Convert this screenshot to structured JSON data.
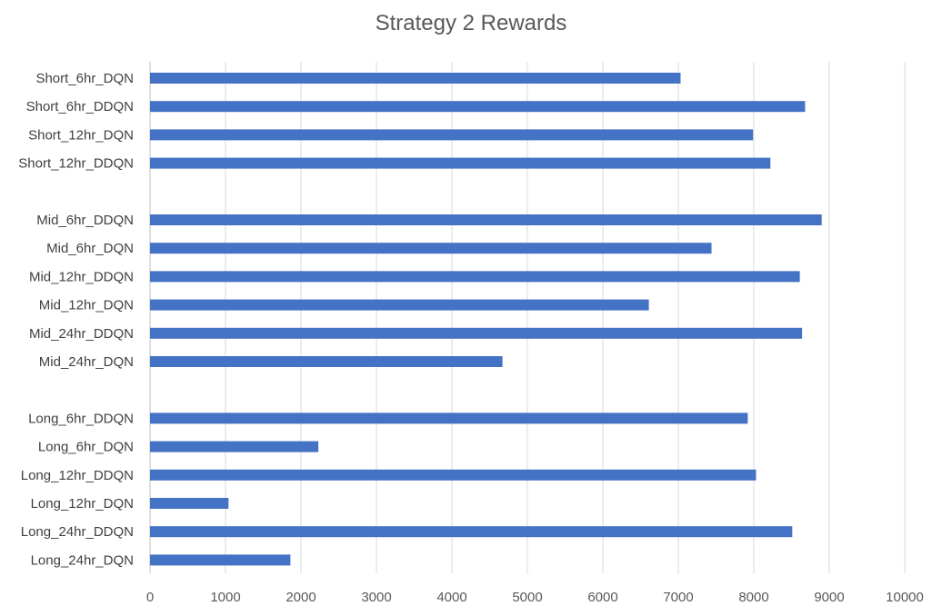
{
  "chart_data": {
    "type": "bar",
    "orientation": "horizontal",
    "title": "Strategy 2 Rewards",
    "xlabel": "",
    "ylabel": "",
    "xlim": [
      0,
      10000
    ],
    "x_ticks": [
      0,
      1000,
      2000,
      3000,
      4000,
      5000,
      6000,
      7000,
      8000,
      9000,
      10000
    ],
    "grid": "vertical",
    "legend": "none",
    "bar_color": "#4472C4",
    "grid_color": "#d9d9d9",
    "categories": [
      "Short_6hr_DQN",
      "Short_6hr_DDQN",
      "Short_12hr_DQN",
      "Short_12hr_DDQN",
      "",
      "Mid_6hr_DDQN",
      "Mid_6hr_DQN",
      "Mid_12hr_DDQN",
      "Mid_12hr_DQN",
      "Mid_24hr_DDQN",
      "Mid_24hr_DQN",
      "",
      "Long_6hr_DDQN",
      "Long_6hr_DQN",
      "Long_12hr_DDQN",
      "Long_12hr_DQN",
      "Long_24hr_DDQN",
      "Long_24hr_DQN"
    ],
    "values": [
      7030,
      8680,
      7990,
      8220,
      null,
      8900,
      7440,
      8610,
      6610,
      8640,
      4670,
      null,
      7920,
      2230,
      8030,
      1040,
      8510,
      1860
    ]
  }
}
